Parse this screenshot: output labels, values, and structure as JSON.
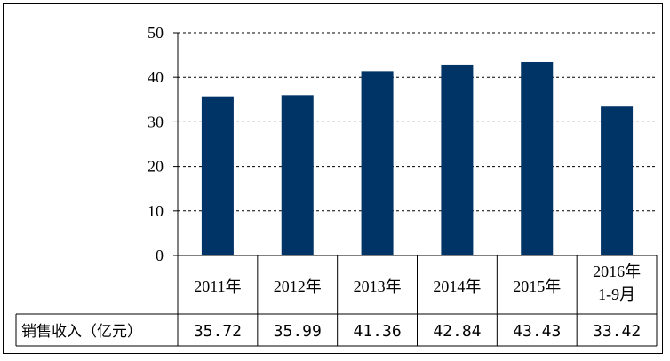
{
  "chart_data": {
    "type": "bar",
    "categories": [
      [
        "2011年"
      ],
      [
        "2012年"
      ],
      [
        "2013年"
      ],
      [
        "2014年"
      ],
      [
        "2015年"
      ],
      [
        "2016年",
        "1-9月"
      ]
    ],
    "series": [
      {
        "name": "销售收入（亿元）",
        "values": [
          35.72,
          35.99,
          41.36,
          42.84,
          43.43,
          33.42
        ]
      }
    ],
    "value_labels": [
      "35.72",
      "35.99",
      "41.36",
      "42.84",
      "43.43",
      "33.42"
    ],
    "ylim": [
      0,
      50
    ],
    "yticks": [
      0,
      10,
      20,
      30,
      40,
      50
    ],
    "grid": "horizontal dashed",
    "bar_color": "#003366",
    "data_table": true
  }
}
